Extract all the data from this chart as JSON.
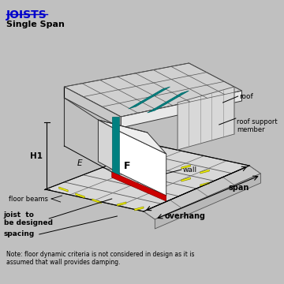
{
  "bg_color": "#c0c0c0",
  "title": "JOISTS",
  "subtitle": "Single Span",
  "title_color": "#0000cc",
  "text_color": "#000000",
  "note": "Note: floor dynamic criteria is not considered in design as it is\nassumed that wall provides damping.",
  "labels": {
    "roof": "roof",
    "roof_support": "roof support\nmember",
    "wall": "wall",
    "H1": "H1",
    "E": "E",
    "F": "F",
    "floor_beams": "floor beams",
    "joist": "joist  to\nbe designed",
    "spacing": "spacing",
    "span": "span",
    "overhang": "overhang"
  },
  "line_color": "#000000",
  "roof_color": "#e0e0e0",
  "wall_color": "#ffffff",
  "teal_color": "#008080",
  "red_color": "#cc0000",
  "yellow_color": "#ffff00",
  "dark_line": "#333333"
}
